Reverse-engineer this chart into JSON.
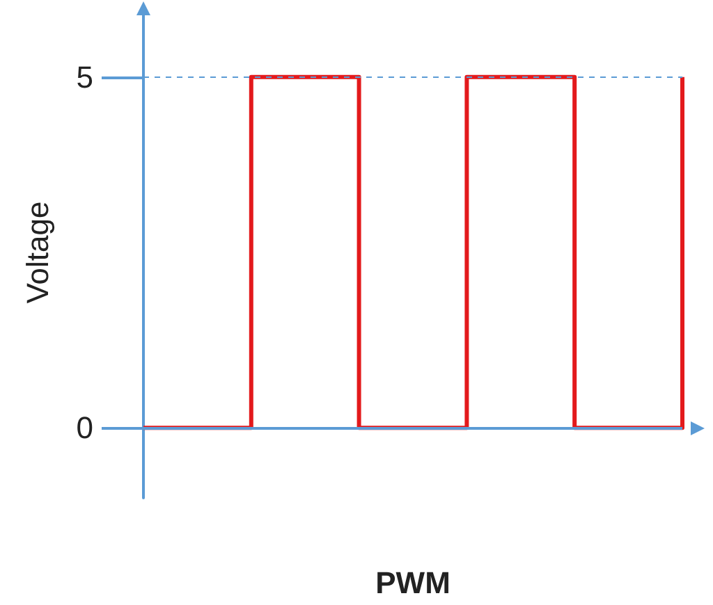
{
  "chart_data": {
    "type": "step",
    "xlabel": "PWM",
    "ylabel": "Voltage",
    "categories": [
      null,
      null,
      null,
      null,
      null,
      null
    ],
    "series": [
      {
        "color": "#e31a1c",
        "values": [
          0,
          5,
          0,
          5,
          0,
          5
        ]
      }
    ],
    "ylim": [
      -1,
      6
    ],
    "yticks": [
      0,
      5
    ],
    "grid": false,
    "marker": "none",
    "ref_lines": [
      {
        "axis": "y",
        "value": 5,
        "color": "#5b9bd5",
        "line_style": "dashed"
      },
      {
        "axis": "y",
        "value": 0,
        "color": "#5b9bd5",
        "line_style": "solid"
      }
    ]
  }
}
